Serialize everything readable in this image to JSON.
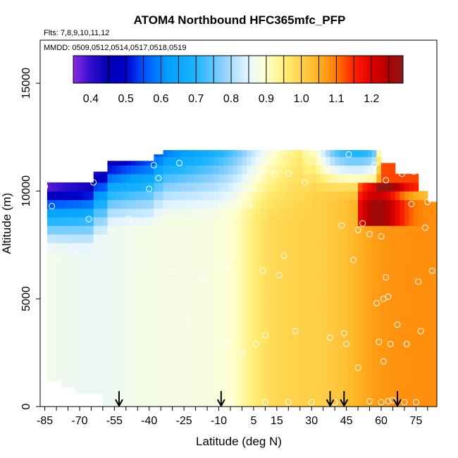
{
  "chart_data": {
    "type": "heatmap",
    "title": "ATOM4 Northbound HFC365mfc_PFP",
    "flights_label": "Flts: 7,8,9,10,11,12",
    "dates_label": "MMDD: 0509,0512,0514,0517,0518,0519",
    "xlabel": "Latitude (deg N)",
    "ylabel": "Altitude (m)",
    "xlim": [
      -87,
      84
    ],
    "ylim": [
      0,
      17000
    ],
    "x_ticks": [
      "-85",
      "-70",
      "-55",
      "-40",
      "-25",
      "-10",
      "5",
      "15",
      "30",
      "45",
      "60",
      "75"
    ],
    "y_ticks": [
      "0",
      "5000",
      "10000",
      "15000"
    ],
    "colorbar": {
      "min": 0.35,
      "max": 1.29,
      "ticks": [
        "0.4",
        "0.5",
        "0.6",
        "0.7",
        "0.8",
        "0.9",
        "1.0",
        "1.1",
        "1.2"
      ],
      "stops": [
        [
          0.35,
          "#8a2be2"
        ],
        [
          0.4,
          "#2f0fd0"
        ],
        [
          0.45,
          "#0000b0"
        ],
        [
          0.5,
          "#0000cd"
        ],
        [
          0.55,
          "#0050ff"
        ],
        [
          0.62,
          "#00a0ff"
        ],
        [
          0.7,
          "#1eb4ff"
        ],
        [
          0.78,
          "#8fd2ff"
        ],
        [
          0.85,
          "#e6f6ff"
        ],
        [
          0.9,
          "#ffffd0"
        ],
        [
          0.95,
          "#fff07a"
        ],
        [
          1.0,
          "#ffd24a"
        ],
        [
          1.05,
          "#ffb020"
        ],
        [
          1.1,
          "#ff7a00"
        ],
        [
          1.15,
          "#ff2000"
        ],
        [
          1.2,
          "#e00000"
        ],
        [
          1.25,
          "#b00000"
        ],
        [
          1.29,
          "#8b1a1a"
        ]
      ]
    },
    "arrow_latitudes": [
      -53,
      -9,
      38,
      44,
      67
    ],
    "samples": [
      {
        "lat": -85,
        "alt": 10200
      },
      {
        "lat": -82,
        "alt": 9300
      },
      {
        "lat": -80,
        "alt": 6900
      },
      {
        "lat": -74,
        "alt": 10700
      },
      {
        "lat": -66,
        "alt": 8700
      },
      {
        "lat": -64,
        "alt": 10400
      },
      {
        "lat": -49,
        "alt": 8700
      },
      {
        "lat": -46,
        "alt": 7300
      },
      {
        "lat": -40,
        "alt": 10100
      },
      {
        "lat": -38,
        "alt": 11200
      },
      {
        "lat": -36,
        "alt": 10600
      },
      {
        "lat": -30,
        "alt": 6300
      },
      {
        "lat": -27,
        "alt": 11300
      },
      {
        "lat": -23,
        "alt": 4000
      },
      {
        "lat": -17,
        "alt": 6000
      },
      {
        "lat": -9,
        "alt": 9300
      },
      {
        "lat": -7,
        "alt": 6500
      },
      {
        "lat": -5,
        "alt": 9300
      },
      {
        "lat": -6,
        "alt": 3000
      },
      {
        "lat": 0,
        "alt": 2500
      },
      {
        "lat": 3,
        "alt": 9400
      },
      {
        "lat": 6,
        "alt": 2900
      },
      {
        "lat": 8,
        "alt": 10800
      },
      {
        "lat": 9,
        "alt": 6300
      },
      {
        "lat": 10,
        "alt": 3300
      },
      {
        "lat": 14,
        "alt": 10800
      },
      {
        "lat": 16,
        "alt": 6100
      },
      {
        "lat": 18,
        "alt": 7000
      },
      {
        "lat": 20,
        "alt": 10800
      },
      {
        "lat": 23,
        "alt": 3500
      },
      {
        "lat": 27,
        "alt": 10400
      },
      {
        "lat": 38,
        "alt": 3200
      },
      {
        "lat": 43,
        "alt": 8400
      },
      {
        "lat": 44,
        "alt": 3400
      },
      {
        "lat": 45,
        "alt": 2900
      },
      {
        "lat": 46,
        "alt": 11700
      },
      {
        "lat": 48,
        "alt": 6800
      },
      {
        "lat": 50,
        "alt": 1800
      },
      {
        "lat": 50,
        "alt": 8200
      },
      {
        "lat": 52,
        "alt": 8500
      },
      {
        "lat": 55,
        "alt": 8000
      },
      {
        "lat": 57,
        "alt": 11200
      },
      {
        "lat": 58,
        "alt": 4800
      },
      {
        "lat": 59,
        "alt": 3000
      },
      {
        "lat": 60,
        "alt": 7900
      },
      {
        "lat": 61,
        "alt": 2100
      },
      {
        "lat": 61,
        "alt": 5000
      },
      {
        "lat": 62,
        "alt": 6000
      },
      {
        "lat": 62,
        "alt": 10500
      },
      {
        "lat": 63,
        "alt": 5100
      },
      {
        "lat": 64,
        "alt": 2900
      },
      {
        "lat": 67,
        "alt": 3800
      },
      {
        "lat": 69,
        "alt": 10800
      },
      {
        "lat": 71,
        "alt": 2900
      },
      {
        "lat": 73,
        "alt": 9400
      },
      {
        "lat": 74,
        "alt": 10900
      },
      {
        "lat": 76,
        "alt": 5800
      },
      {
        "lat": 77,
        "alt": 3500
      },
      {
        "lat": 79,
        "alt": 8300
      },
      {
        "lat": 80,
        "alt": 9500
      },
      {
        "lat": 82,
        "alt": 6300
      },
      {
        "lat": 30,
        "alt": 200
      },
      {
        "lat": 40,
        "alt": 200
      },
      {
        "lat": 55,
        "alt": 250
      },
      {
        "lat": 60,
        "alt": 200
      },
      {
        "lat": 63,
        "alt": 250
      },
      {
        "lat": 65,
        "alt": 300
      },
      {
        "lat": 70,
        "alt": 200
      },
      {
        "lat": 75,
        "alt": 200
      },
      {
        "lat": 10,
        "alt": 200
      },
      {
        "lat": 20,
        "alt": 200
      },
      {
        "lat": -5,
        "alt": 200
      },
      {
        "lat": -52,
        "alt": 200
      }
    ]
  }
}
